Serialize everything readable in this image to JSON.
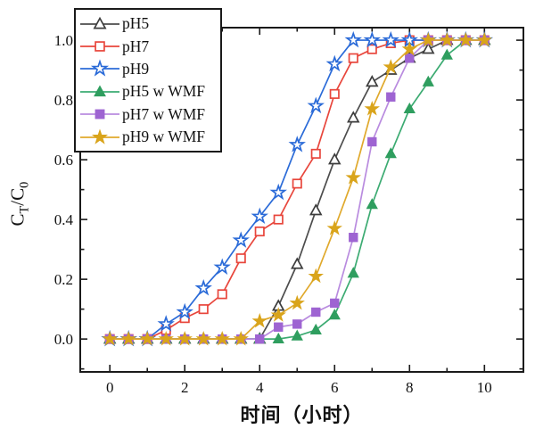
{
  "chart_data": {
    "type": "line",
    "title": "",
    "xlabel": "时间（小时）",
    "ylabel": "CT/C0",
    "ylabel_parts": {
      "c1": "C",
      "sub1": "T",
      "c2": "/C",
      "sub2": "0"
    },
    "grid": false,
    "legend_position": "top-left",
    "xlim": [
      -0.79,
      11.04
    ],
    "ylim": [
      -0.11,
      1.042
    ],
    "xticks": [
      0,
      2,
      4,
      6,
      8,
      10
    ],
    "xminorticks": [
      1,
      3,
      5,
      7,
      9
    ],
    "ytick_labels": [
      "0.0",
      "0.2",
      "0.4",
      "0.6",
      "0.8",
      "1.0"
    ],
    "ytick_values": [
      0,
      0.2,
      0.4,
      0.6,
      0.8,
      1.0
    ],
    "yminorticks": [
      -0.1,
      0.1,
      0.3,
      0.5,
      0.7,
      0.9
    ],
    "x": [
      0,
      0.5,
      1,
      1.5,
      2,
      2.5,
      3,
      3.5,
      4,
      4.5,
      5,
      5.5,
      6,
      6.5,
      7,
      7.5,
      8,
      8.5,
      9,
      9.5,
      10
    ],
    "series": [
      {
        "name": "pH5",
        "marker": "triangle-open",
        "line_color": "#4d4d4d",
        "marker_color": "#3d3d3d",
        "values": [
          0,
          0,
          0,
          0,
          0,
          0,
          0,
          0,
          0,
          0.11,
          0.25,
          0.43,
          0.6,
          0.74,
          0.86,
          0.9,
          0.94,
          0.97,
          1.0,
          1.0,
          1.0
        ]
      },
      {
        "name": "pH7",
        "marker": "square-open",
        "line_color": "#e8463c",
        "marker_color": "#e8463c",
        "values": [
          0,
          0,
          0,
          0.03,
          0.07,
          0.1,
          0.15,
          0.27,
          0.36,
          0.4,
          0.52,
          0.62,
          0.82,
          0.94,
          0.97,
          0.99,
          1.0,
          1.0,
          1.0,
          1.0,
          1.0
        ]
      },
      {
        "name": "pH9",
        "marker": "star-open",
        "line_color": "#2b6bd8",
        "marker_color": "#2b6bd8",
        "values": [
          0,
          0,
          0,
          0.05,
          0.09,
          0.17,
          0.24,
          0.33,
          0.41,
          0.49,
          0.65,
          0.78,
          0.92,
          1.0,
          1.0,
          1.0,
          1.0,
          1.0,
          1.0,
          1.0,
          1.0
        ]
      },
      {
        "name": "pH5 w WMF",
        "marker": "triangle-filled",
        "line_color": "#3cab72",
        "marker_color": "#2f9e5f",
        "values": [
          0,
          0,
          0,
          0,
          0,
          0,
          0,
          0,
          0,
          0,
          0.01,
          0.03,
          0.08,
          0.22,
          0.45,
          0.62,
          0.77,
          0.86,
          0.95,
          1.0,
          1.0
        ]
      },
      {
        "name": "pH7 w WMF",
        "marker": "square-filled",
        "line_color": "#b98bdf",
        "marker_color": "#9e64d2",
        "values": [
          0,
          0,
          0,
          0,
          0,
          0,
          0,
          0,
          0,
          0.04,
          0.05,
          0.09,
          0.12,
          0.34,
          0.66,
          0.81,
          0.94,
          1.0,
          1.0,
          1.0,
          1.0
        ]
      },
      {
        "name": "pH9 w WMF",
        "marker": "star-filled",
        "line_color": "#e0a92c",
        "marker_color": "#d9a41b",
        "values": [
          0,
          0,
          0,
          0,
          0,
          0,
          0,
          0,
          0.06,
          0.08,
          0.12,
          0.21,
          0.37,
          0.54,
          0.77,
          0.91,
          0.97,
          1.0,
          1.0,
          1.0,
          1.0
        ]
      }
    ]
  }
}
